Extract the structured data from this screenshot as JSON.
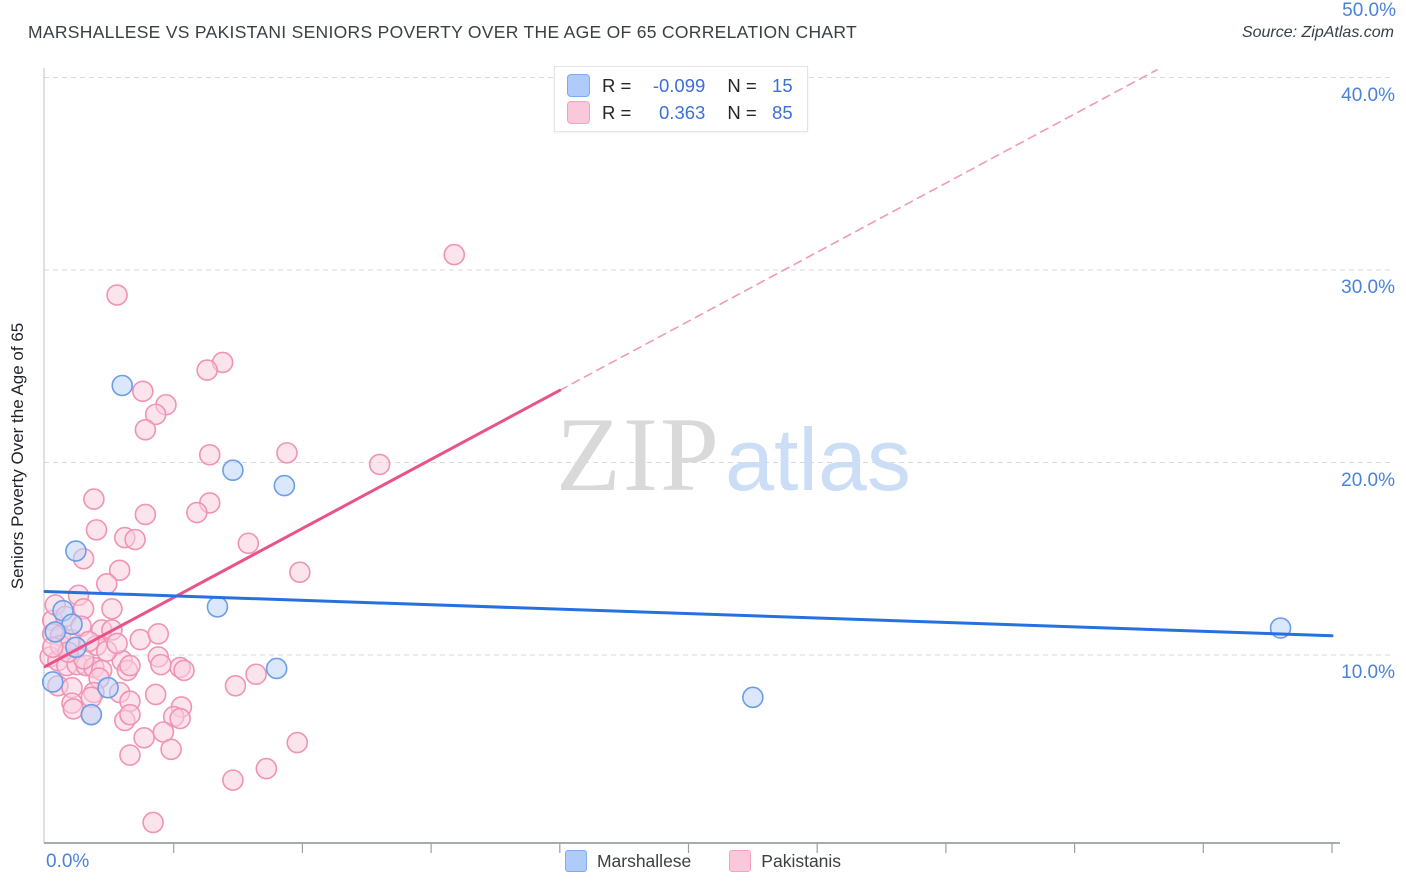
{
  "header": {
    "title": "MARSHALLESE VS PAKISTANI SENIORS POVERTY OVER THE AGE OF 65 CORRELATION CHART",
    "source": "Source: ZipAtlas.com"
  },
  "legend_box": {
    "rows": [
      {
        "series": "Marshallese",
        "r_label": "R =",
        "r_value": "-0.099",
        "n_label": "N =",
        "n_value": "15"
      },
      {
        "series": "Pakistanis",
        "r_label": "R =",
        "r_value": "0.363",
        "n_label": "N =",
        "n_value": "85"
      }
    ]
  },
  "watermark": {
    "part1": "ZIP",
    "part2": "atlas"
  },
  "bottom_legend": [
    {
      "label": "Marshallese",
      "color": "#aecbfa"
    },
    {
      "label": "Pakistanis",
      "color": "#fbc8db"
    }
  ],
  "chart_data": {
    "type": "scatter",
    "title": "MARSHALLESE VS PAKISTANI SENIORS POVERTY OVER THE AGE OF 65 CORRELATION CHART",
    "y_axis_label": "Seniors Poverty Over the Age of 65",
    "x_range": [
      0,
      50
    ],
    "y_range": [
      0,
      40.5
    ],
    "x_tick_labels": [
      "0.0%",
      "50.0%"
    ],
    "x_ticks": [
      5,
      10,
      15,
      20,
      25,
      30,
      35,
      40,
      45,
      50
    ],
    "y_gridlines": [
      10,
      20,
      30,
      40
    ],
    "y_tick_labels": [
      "10.0%",
      "20.0%",
      "30.0%",
      "40.0%"
    ],
    "grid": true,
    "legend_position": "bottom-center",
    "series": [
      {
        "name": "Pakistanis",
        "stroke": "#f093b4",
        "fill": "rgba(250,205,222,0.55)",
        "points": [
          [
            15.9,
            30.8
          ],
          [
            2.8,
            28.7
          ],
          [
            6.9,
            25.2
          ],
          [
            6.3,
            24.8
          ],
          [
            3.8,
            23.7
          ],
          [
            4.7,
            23.0
          ],
          [
            4.3,
            22.5
          ],
          [
            3.9,
            21.7
          ],
          [
            6.4,
            20.4
          ],
          [
            9.4,
            20.5
          ],
          [
            13.0,
            19.9
          ],
          [
            1.9,
            18.1
          ],
          [
            6.4,
            17.9
          ],
          [
            5.9,
            17.4
          ],
          [
            3.9,
            17.3
          ],
          [
            2.0,
            16.5
          ],
          [
            3.1,
            16.1
          ],
          [
            3.5,
            16.0
          ],
          [
            7.9,
            15.8
          ],
          [
            1.5,
            15.0
          ],
          [
            2.9,
            14.4
          ],
          [
            9.9,
            14.3
          ],
          [
            2.4,
            13.7
          ],
          [
            1.3,
            13.1
          ],
          [
            1.5,
            12.4
          ],
          [
            2.6,
            12.4
          ],
          [
            0.3,
            11.8
          ],
          [
            0.3,
            11.1
          ],
          [
            0.6,
            11.0
          ],
          [
            2.2,
            11.3
          ],
          [
            2.6,
            11.3
          ],
          [
            3.7,
            10.8
          ],
          [
            4.4,
            11.1
          ],
          [
            0.2,
            9.9
          ],
          [
            0.5,
            9.7
          ],
          [
            0.85,
            9.45
          ],
          [
            1.25,
            9.5
          ],
          [
            1.6,
            9.45
          ],
          [
            1.9,
            9.35
          ],
          [
            2.2,
            9.2
          ],
          [
            1.5,
            9.8
          ],
          [
            3.0,
            9.7
          ],
          [
            3.2,
            9.2
          ],
          [
            2.1,
            8.8
          ],
          [
            0.5,
            8.4
          ],
          [
            1.05,
            8.3
          ],
          [
            1.9,
            8.05
          ],
          [
            2.9,
            8.05
          ],
          [
            1.05,
            7.5
          ],
          [
            1.8,
            7.8
          ],
          [
            1.1,
            7.2
          ],
          [
            3.1,
            6.6
          ],
          [
            4.3,
            7.95
          ],
          [
            4.4,
            9.9
          ],
          [
            5.25,
            9.35
          ],
          [
            5.3,
            7.3
          ],
          [
            3.3,
            9.45
          ],
          [
            4.5,
            9.5
          ],
          [
            5.4,
            9.2
          ],
          [
            8.2,
            9.0
          ],
          [
            7.4,
            8.4
          ],
          [
            3.3,
            7.6
          ],
          [
            3.3,
            6.9
          ],
          [
            5.0,
            6.8
          ],
          [
            5.25,
            6.7
          ],
          [
            4.6,
            6.0
          ],
          [
            3.85,
            5.7
          ],
          [
            4.9,
            5.1
          ],
          [
            3.3,
            4.8
          ],
          [
            9.8,
            5.45
          ],
          [
            8.6,
            4.1
          ],
          [
            7.3,
            3.5
          ],
          [
            4.2,
            1.3
          ],
          [
            0.4,
            12.6
          ],
          [
            0.8,
            12.0
          ],
          [
            0.6,
            10.5
          ],
          [
            1.0,
            10.8
          ],
          [
            1.4,
            11.5
          ],
          [
            0.9,
            10.15
          ],
          [
            2.0,
            10.5
          ],
          [
            2.4,
            10.2
          ],
          [
            0.3,
            10.4
          ],
          [
            1.7,
            10.7
          ],
          [
            1.8,
            6.9
          ],
          [
            2.8,
            10.6
          ]
        ]
      },
      {
        "name": "Marshallese",
        "stroke": "#6b9de8",
        "fill": "rgba(190,214,250,0.55)",
        "points": [
          [
            3.0,
            24.0
          ],
          [
            7.3,
            19.6
          ],
          [
            9.3,
            18.8
          ],
          [
            1.2,
            15.4
          ],
          [
            6.7,
            12.5
          ],
          [
            0.7,
            12.3
          ],
          [
            1.05,
            11.6
          ],
          [
            0.4,
            11.2
          ],
          [
            1.2,
            10.4
          ],
          [
            0.3,
            8.6
          ],
          [
            2.45,
            8.3
          ],
          [
            1.8,
            6.9
          ],
          [
            9.0,
            9.3
          ],
          [
            27.5,
            7.8
          ],
          [
            48.0,
            11.4
          ]
        ]
      }
    ],
    "trend_lines": [
      {
        "series": "Pakistanis",
        "style": "dashed",
        "color": "#f09ab8",
        "width": 1.6,
        "start": [
          20.0,
          23.75
        ],
        "end": [
          43.2,
          40.4
        ]
      },
      {
        "series": "Pakistanis",
        "style": "solid",
        "color": "#e8548a",
        "width": 3,
        "start": [
          0,
          9.4
        ],
        "end": [
          20.0,
          23.75
        ]
      },
      {
        "series": "Marshallese",
        "style": "solid",
        "color": "#2671e0",
        "width": 3,
        "start": [
          0,
          13.3
        ],
        "end": [
          50,
          11.0
        ]
      }
    ]
  }
}
